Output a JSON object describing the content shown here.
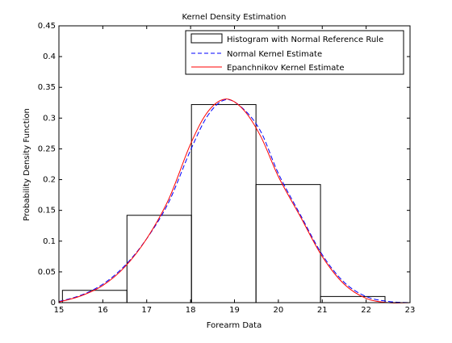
{
  "chart_data": {
    "type": "line",
    "title": "Kernel Density Estimation",
    "xlabel": "Forearm Data",
    "ylabel": "Probability Density Function",
    "xlim": [
      15,
      23
    ],
    "ylim": [
      0,
      0.45
    ],
    "xticks": [
      15,
      16,
      17,
      18,
      19,
      20,
      21,
      22,
      23
    ],
    "xtick_labels": [
      "15",
      "16",
      "17",
      "18",
      "19",
      "20",
      "21",
      "22",
      "23"
    ],
    "yticks": [
      0,
      0.05,
      0.1,
      0.15,
      0.2,
      0.25,
      0.3,
      0.35,
      0.4,
      0.45
    ],
    "ytick_labels": [
      "0",
      "0.05",
      "0.1",
      "0.15",
      "0.2",
      "0.25",
      "0.3",
      "0.35",
      "0.4",
      "0.45"
    ],
    "grid": false,
    "legend_position": "top-right",
    "histogram": {
      "name": "Histogram with Normal Reference Rule",
      "color": "#000000",
      "edges": [
        15.08,
        16.55,
        18.02,
        19.49,
        20.96,
        22.43
      ],
      "values": [
        0.02,
        0.142,
        0.322,
        0.192,
        0.01
      ]
    },
    "series": [
      {
        "name": "Normal Kernel Estimate",
        "color": "#0000ff",
        "dash": "dashed",
        "x": [
          15.0,
          15.5,
          16.0,
          16.5,
          17.0,
          17.5,
          18.0,
          18.4,
          18.8,
          19.2,
          19.6,
          20.0,
          20.5,
          21.0,
          21.5,
          22.0,
          22.5,
          23.0
        ],
        "y": [
          0.002,
          0.012,
          0.03,
          0.06,
          0.104,
          0.163,
          0.248,
          0.305,
          0.33,
          0.315,
          0.278,
          0.21,
          0.143,
          0.078,
          0.033,
          0.01,
          0.002,
          0.0
        ]
      },
      {
        "name": "Epanchnikov Kernel Estimate",
        "color": "#ff0000",
        "dash": "solid",
        "x": [
          15.0,
          15.5,
          16.0,
          16.5,
          17.0,
          17.5,
          18.0,
          18.4,
          18.8,
          19.2,
          19.6,
          20.0,
          20.5,
          21.0,
          21.5,
          22.0,
          22.5,
          23.0
        ],
        "y": [
          0.001,
          0.011,
          0.028,
          0.058,
          0.104,
          0.168,
          0.258,
          0.311,
          0.331,
          0.314,
          0.27,
          0.205,
          0.14,
          0.075,
          0.03,
          0.007,
          0.0,
          0.0
        ]
      }
    ]
  }
}
